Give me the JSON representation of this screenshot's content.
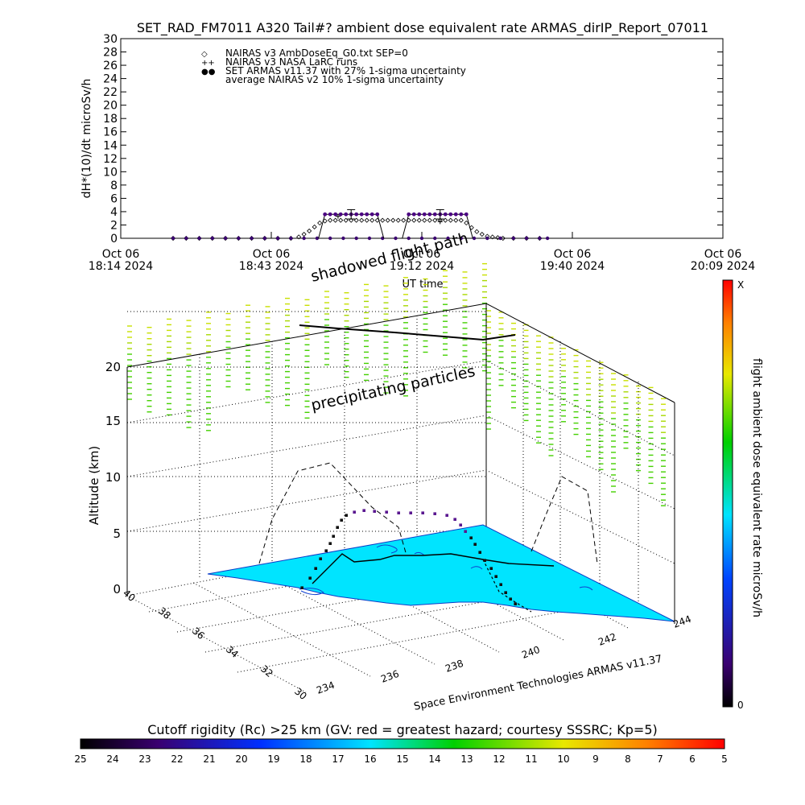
{
  "chart_data": [
    {
      "type": "scatter",
      "title": "SET_RAD_FM7011  A320 Tail#? ambient dose equivalent rate ARMAS_dirIP_Report_07011",
      "ylabel": "dH*(10)/dt microSv/h",
      "xlabel": "UT time",
      "ylim": [
        0,
        30
      ],
      "yticks": [
        "0",
        "2",
        "4",
        "6",
        "8",
        "10",
        "12",
        "14",
        "16",
        "18",
        "20",
        "22",
        "24",
        "26",
        "28",
        "30"
      ],
      "xticks": [
        {
          "line1": "Oct 06",
          "line2": "18:14 2024"
        },
        {
          "line1": "Oct 06",
          "line2": "18:43 2024"
        },
        {
          "line1": "Oct 06",
          "line2": "19:12 2024"
        },
        {
          "line1": "Oct 06",
          "line2": "19:40 2024"
        },
        {
          "line1": "Oct 06",
          "line2": "20:09 2024"
        }
      ],
      "x_unit": "minutes after 18:14 UT",
      "legend": [
        {
          "symbol": "◇",
          "label": "NAIRAS v3 AmbDoseEq_G0.txt SEP=0"
        },
        {
          "symbol": "++",
          "label": "NAIRAS v3 NASA LaRC runs"
        },
        {
          "symbol": "●●",
          "label": "SET ARMAS v11.37 with 27% 1-sigma uncertainty"
        },
        {
          "symbol": "",
          "label": "average NAIRAS v2 10% 1-sigma uncertainty"
        }
      ],
      "series": [
        {
          "name": "NAIRAS v3 AmbDoseEq_G0.txt SEP=0",
          "color": "#000000",
          "x": [
            20,
            25,
            30,
            35,
            40,
            45,
            50,
            55,
            60,
            65,
            68,
            70,
            72,
            74,
            76,
            78,
            80,
            82,
            84,
            86,
            88,
            90,
            92,
            94,
            96,
            98,
            100,
            102,
            104,
            106,
            108,
            110,
            112,
            114,
            116,
            118,
            120,
            122,
            124,
            126,
            128,
            130,
            132,
            134,
            136,
            138,
            140,
            142,
            144,
            146,
            150,
            155,
            160
          ],
          "y": [
            0,
            0,
            0,
            0,
            0,
            0,
            0,
            0,
            0,
            0,
            0.2,
            0.6,
            1.1,
            1.7,
            2.3,
            2.6,
            2.7,
            2.7,
            2.7,
            2.7,
            2.7,
            2.7,
            2.7,
            2.7,
            2.7,
            2.7,
            2.7,
            2.7,
            2.7,
            2.7,
            2.7,
            2.7,
            2.7,
            2.7,
            2.7,
            2.7,
            2.7,
            2.7,
            2.7,
            2.7,
            2.7,
            2.7,
            2.3,
            1.6,
            1.0,
            0.6,
            0.3,
            0.2,
            0.1,
            0,
            0,
            0,
            0
          ]
        },
        {
          "name": "SET ARMAS v11.37 with 27% 1-sigma uncertainty",
          "color": "#4b0082",
          "x": [
            20,
            25,
            30,
            35,
            40,
            45,
            50,
            55,
            60,
            65,
            70,
            75,
            80,
            85,
            90,
            95,
            100,
            105,
            110,
            115,
            120,
            125,
            130,
            135,
            140,
            145,
            150,
            155,
            160,
            163
          ],
          "y": [
            0,
            0,
            0,
            0,
            0,
            0,
            0,
            0,
            0,
            0,
            0,
            0,
            0,
            0,
            0,
            0,
            0,
            0,
            0,
            0,
            0,
            0,
            0,
            0,
            0,
            0,
            0,
            0,
            0,
            0
          ]
        },
        {
          "name": "SET ARMAS plateau 1",
          "color": "#4b0082",
          "x": [
            78,
            80,
            82,
            84,
            86,
            88,
            90,
            92,
            94,
            96,
            98
          ],
          "y": [
            3.6,
            3.6,
            3.6,
            3.6,
            3.6,
            3.6,
            3.6,
            3.6,
            3.6,
            3.6,
            3.6
          ]
        },
        {
          "name": "SET ARMAS plateau 2",
          "color": "#4b0082",
          "x": [
            110,
            112,
            114,
            116,
            118,
            120,
            122,
            124,
            126,
            128,
            130,
            132
          ],
          "y": [
            3.6,
            3.6,
            3.6,
            3.6,
            3.6,
            3.6,
            3.6,
            3.6,
            3.6,
            3.6,
            3.6,
            3.6
          ]
        },
        {
          "name": "NAIRAS v3 NASA LaRC runs",
          "color": "#000000",
          "x": [
            83,
            122
          ],
          "y": [
            3.3,
            2.5
          ]
        }
      ]
    },
    {
      "type": "scatter",
      "title": "3D flight path with cutoff rigidity map",
      "zlabel": "Altitude (km)",
      "zticks": [
        "0",
        "5",
        "10",
        "15",
        "20"
      ],
      "lat_ticks": [
        "30",
        "32",
        "34",
        "36",
        "38",
        "40"
      ],
      "lon_ticks": [
        "234",
        "236",
        "238",
        "240",
        "242",
        "244"
      ],
      "annotations": [
        "shadowed flight path",
        "precipitating particles"
      ],
      "credit": "Space Environment Technologies ARMAS v11.37",
      "dose_colorbar": {
        "label": "flight ambient dose equivalent rate microSv/h",
        "top": "X",
        "bottom": "0"
      },
      "rigidity_colorbar": {
        "label": "Cutoff rigidity (Rc) >25 km (GV: red = greatest hazard; courtesy SSSRC; Kp=5)",
        "ticks": [
          "25",
          "24",
          "23",
          "22",
          "21",
          "20",
          "19",
          "18",
          "17",
          "16",
          "15",
          "14",
          "13",
          "12",
          "11",
          "10",
          "9",
          "8",
          "7",
          "6",
          "5"
        ]
      }
    }
  ],
  "colors": {
    "surface": "#00e4ff",
    "particles": "#8cd400",
    "flight": "#3c0070",
    "path": "#000000"
  }
}
